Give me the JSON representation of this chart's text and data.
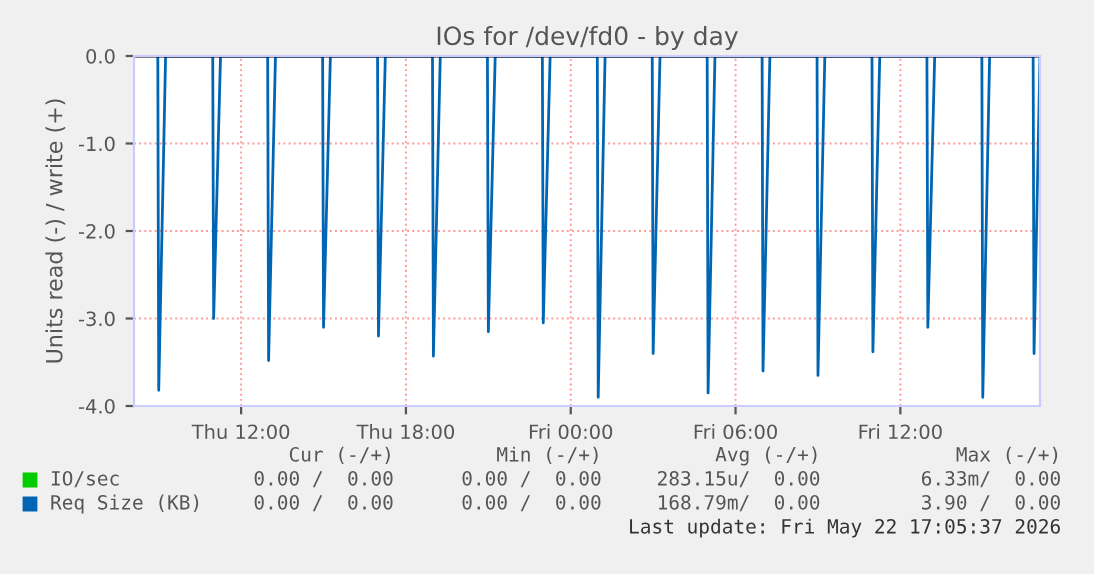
{
  "chart_data": {
    "type": "line",
    "title": "IOs for /dev/fd0 - by day",
    "ylabel": "Units read (-) / write (+)",
    "xlim": [
      "2026-05-21T08:06",
      "2026-05-22T17:05"
    ],
    "ylim": [
      -4.0,
      0.0
    ],
    "xticks": [
      {
        "value": "2026-05-21T12:00",
        "label": "Thu 12:00"
      },
      {
        "value": "2026-05-21T18:00",
        "label": "Thu 18:00"
      },
      {
        "value": "2026-05-22T00:00",
        "label": "Fri 00:00"
      },
      {
        "value": "2026-05-22T06:00",
        "label": "Fri 06:00"
      },
      {
        "value": "2026-05-22T12:00",
        "label": "Fri 12:00"
      }
    ],
    "yticks": [
      {
        "value": -4,
        "label": "-4.0"
      },
      {
        "value": -3,
        "label": "-3.0"
      },
      {
        "value": -2,
        "label": "-2.0"
      },
      {
        "value": -1,
        "label": "-1.0"
      },
      {
        "value": 0,
        "label": "0.0"
      }
    ],
    "grid": true,
    "legend": "bottom",
    "marker": "none",
    "line_style": "solid",
    "series": [
      {
        "name": "IO/sec",
        "color": "#00cc00"
      },
      {
        "name": "Req Size (KB)",
        "color": "#0066b3",
        "x": [
          "2026-05-21T08:58",
          "2026-05-21T09:00",
          "2026-05-21T09:15",
          "2026-05-21T10:58",
          "2026-05-21T11:00",
          "2026-05-21T11:15",
          "2026-05-21T12:58",
          "2026-05-21T13:00",
          "2026-05-21T13:15",
          "2026-05-21T14:58",
          "2026-05-21T15:00",
          "2026-05-21T15:15",
          "2026-05-21T16:58",
          "2026-05-21T17:00",
          "2026-05-21T17:15",
          "2026-05-21T18:58",
          "2026-05-21T19:00",
          "2026-05-21T19:15",
          "2026-05-21T20:58",
          "2026-05-21T21:00",
          "2026-05-21T21:15",
          "2026-05-21T22:58",
          "2026-05-21T23:00",
          "2026-05-21T23:15",
          "2026-05-22T00:58",
          "2026-05-22T01:00",
          "2026-05-22T01:15",
          "2026-05-22T02:58",
          "2026-05-22T03:00",
          "2026-05-22T03:15",
          "2026-05-22T04:58",
          "2026-05-22T05:00",
          "2026-05-22T05:15",
          "2026-05-22T06:58",
          "2026-05-22T07:00",
          "2026-05-22T07:15",
          "2026-05-22T08:58",
          "2026-05-22T09:00",
          "2026-05-22T09:15",
          "2026-05-22T10:58",
          "2026-05-22T11:00",
          "2026-05-22T11:15",
          "2026-05-22T12:58",
          "2026-05-22T13:00",
          "2026-05-22T13:15",
          "2026-05-22T14:58",
          "2026-05-22T15:00",
          "2026-05-22T15:15",
          "2026-05-22T16:50",
          "2026-05-22T16:52",
          "2026-05-22T17:05"
        ],
        "values": [
          0,
          -3.82,
          0,
          0,
          -3.0,
          0,
          0,
          -3.48,
          0,
          0,
          -3.1,
          0,
          0,
          -3.2,
          0,
          0,
          -3.43,
          0,
          0,
          -3.15,
          0,
          0,
          -3.05,
          0,
          0,
          -3.9,
          0,
          0,
          -3.4,
          0,
          0,
          -3.85,
          0,
          0,
          -3.6,
          0,
          0,
          -3.65,
          0,
          0,
          -3.38,
          0,
          0,
          -3.1,
          0,
          0,
          -3.9,
          0,
          0,
          -3.4,
          0
        ]
      }
    ],
    "annotations": [
      "Cur (-/+)",
      "Min (-/+)",
      "Avg (-/+)",
      "Max (-/+)",
      "0.00 /  0.00",
      "0.00 /  0.00",
      "283.15u/  0.00",
      "6.33m/  0.00",
      "0.00 /  0.00",
      "0.00 /  0.00",
      "168.79m/  0.00",
      "3.90 /  0.00",
      "Last update: Fri May 22 17:05:37 2026"
    ]
  }
}
